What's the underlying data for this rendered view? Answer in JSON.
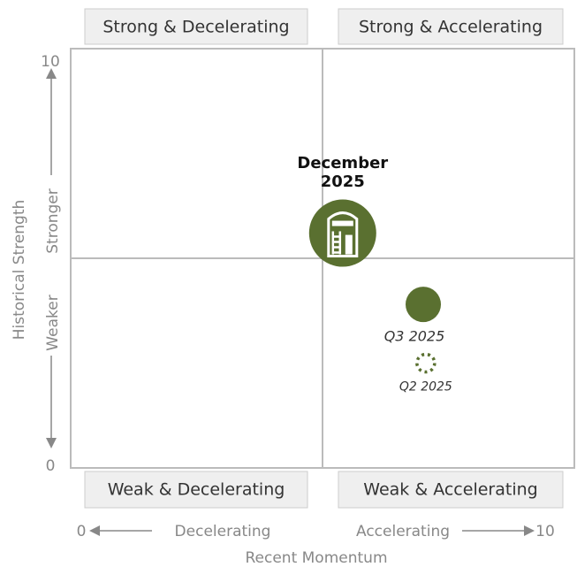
{
  "chart_data": {
    "type": "scatter",
    "x_label": "Recent Momentum",
    "y_label": "Historical Strength",
    "x_low_label": "Decelerating",
    "x_high_label": "Accelerating",
    "y_high_label": "Stronger",
    "y_low_label": "Weaker",
    "quadrants": {
      "top_left": "Strong & Decelerating",
      "top_right": "Strong & Accelerating",
      "bottom_left": "Weak & Decelerating",
      "bottom_right": "Weak & Accelerating"
    },
    "xlim": [
      0,
      10
    ],
    "ylim": [
      0,
      10
    ],
    "xticks": [
      0,
      10
    ],
    "yticks": [
      0,
      10
    ],
    "color": "#5a7030",
    "points": [
      {
        "label": "December 2025",
        "x": 5.4,
        "y": 5.6,
        "marker": "icon"
      },
      {
        "label": "Q3 2025",
        "x": 7.0,
        "y": 3.9,
        "marker": "filled"
      },
      {
        "label": "Q2 2025",
        "x": 7.05,
        "y": 2.5,
        "marker": "dashed"
      }
    ]
  }
}
